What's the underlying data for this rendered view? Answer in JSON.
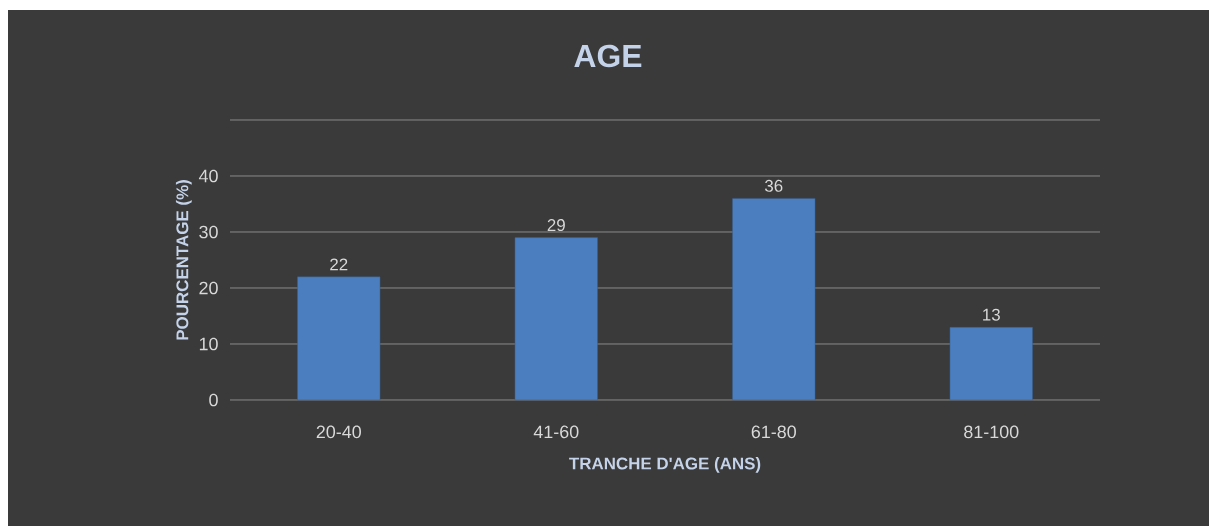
{
  "chart_data": {
    "type": "bar",
    "title": "AGE",
    "xlabel": "TRANCHE D'AGE (ANS)",
    "ylabel": "POURCENTAGE (%)",
    "categories": [
      "20-40",
      "41-60",
      "61-80",
      "81-100"
    ],
    "values": [
      22,
      29,
      36,
      13
    ],
    "color": "#4a7ebf",
    "ylim": [
      0,
      50
    ],
    "yticks": [
      0,
      10,
      20,
      30,
      40,
      {
        "value": 50,
        "label": null
      }
    ],
    "grid": "y",
    "data_labels": true
  }
}
